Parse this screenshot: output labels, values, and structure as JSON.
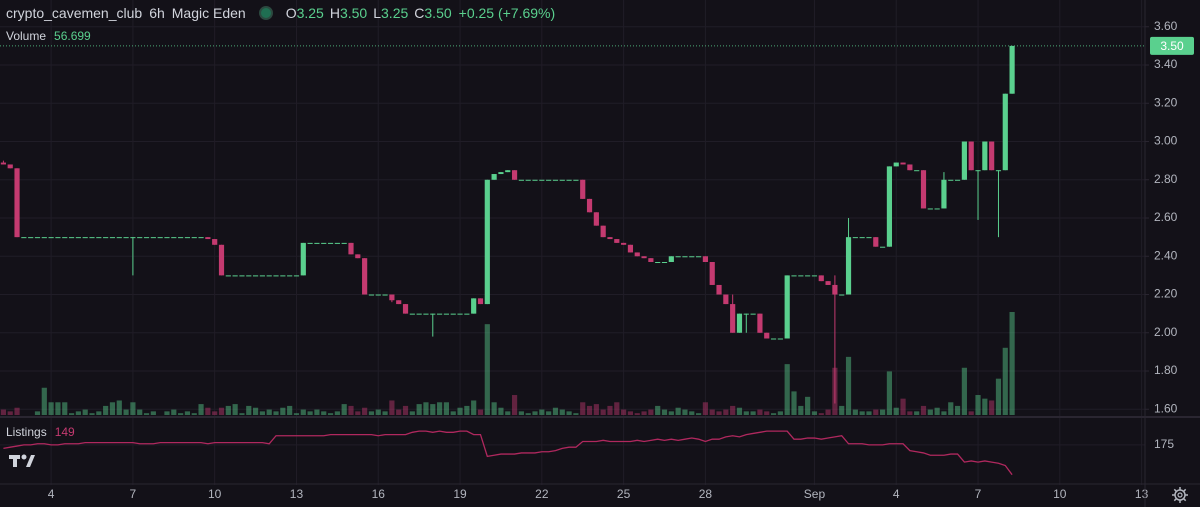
{
  "chart_data": {
    "type": "candlestick",
    "symbol": "crypto_cavemen_club",
    "interval": "6h",
    "exchange": "Magic Eden",
    "ohlc_legend": [
      {
        "letter": "O",
        "value": "3.25"
      },
      {
        "letter": "H",
        "value": "3.50"
      },
      {
        "letter": "L",
        "value": "3.25"
      },
      {
        "letter": "C",
        "value": "3.50"
      }
    ],
    "change_label": "+0.25 (+7.69%)",
    "up_color": "#5ad08e",
    "down_color": "#c43a70",
    "grid": true,
    "categories": [
      null,
      null,
      null,
      null,
      null,
      null,
      null,
      "4",
      null,
      null,
      null,
      null,
      null,
      null,
      null,
      null,
      null,
      null,
      null,
      "7",
      null,
      null,
      null,
      null,
      null,
      null,
      null,
      null,
      null,
      null,
      null,
      "10",
      null,
      null,
      null,
      null,
      null,
      null,
      null,
      null,
      null,
      null,
      null,
      "13",
      null,
      null,
      null,
      null,
      null,
      null,
      null,
      null,
      null,
      null,
      null,
      "16",
      null,
      null,
      null,
      null,
      null,
      null,
      null,
      null,
      null,
      null,
      null,
      "19",
      null,
      null,
      null,
      null,
      null,
      null,
      null,
      null,
      null,
      null,
      null,
      "22",
      null,
      null,
      null,
      null,
      null,
      null,
      null,
      null,
      null,
      null,
      null,
      "25",
      null,
      null,
      null,
      null,
      null,
      null,
      null,
      null,
      null,
      null,
      null,
      "28",
      null,
      null,
      null,
      null,
      null,
      null,
      null,
      null,
      null,
      null,
      null,
      null,
      null,
      null,
      null,
      "Sep",
      null,
      null,
      null,
      null,
      null,
      null,
      null,
      null,
      null,
      null,
      null,
      "4",
      null,
      null,
      null,
      null,
      null,
      null,
      null,
      null,
      null,
      null,
      null,
      "7",
      null,
      null,
      null,
      null,
      null,
      null,
      null,
      null,
      null,
      null,
      null,
      "10",
      null,
      null,
      null,
      null,
      null,
      null,
      null,
      null,
      null,
      null,
      null,
      "13"
    ],
    "open": [
      2.89,
      2.88,
      2.86,
      2.5,
      2.5,
      2.5,
      2.5,
      2.5,
      2.5,
      2.5,
      2.5,
      2.5,
      2.5,
      2.5,
      2.5,
      2.5,
      2.5,
      2.5,
      2.5,
      2.5,
      2.5,
      2.5,
      2.5,
      2.5,
      2.5,
      2.5,
      2.5,
      2.5,
      2.5,
      2.5,
      2.5,
      2.49,
      2.46,
      2.3,
      2.3,
      2.3,
      2.3,
      2.3,
      2.3,
      2.3,
      2.3,
      2.3,
      2.3,
      2.3,
      2.3,
      2.47,
      2.47,
      2.47,
      2.47,
      2.47,
      2.47,
      2.47,
      2.41,
      2.39,
      2.2,
      2.2,
      2.2,
      2.2,
      2.17,
      2.15,
      2.1,
      2.1,
      2.1,
      2.1,
      2.1,
      2.1,
      2.1,
      2.1,
      2.1,
      2.1,
      2.18,
      2.15,
      2.8,
      2.83,
      2.84,
      2.85,
      2.8,
      2.8,
      2.8,
      2.8,
      2.8,
      2.8,
      2.8,
      2.8,
      2.8,
      2.8,
      2.7,
      2.63,
      2.56,
      2.5,
      2.49,
      2.47,
      2.46,
      2.42,
      2.4,
      2.39,
      2.37,
      2.37,
      2.37,
      2.4,
      2.4,
      2.4,
      2.4,
      2.4,
      2.37,
      2.25,
      2.2,
      2.15,
      2.0,
      2.1,
      2.1,
      2.1,
      2.0,
      1.97,
      1.97,
      1.97,
      2.3,
      2.3,
      2.3,
      2.3,
      2.3,
      2.27,
      2.25,
      2.2,
      2.2,
      2.5,
      2.5,
      2.5,
      2.5,
      2.45,
      2.45,
      2.87,
      2.89,
      2.88,
      2.85,
      2.85,
      2.65,
      2.65,
      2.65,
      2.8,
      2.8,
      2.8,
      3.0,
      2.85,
      2.85,
      3.0,
      2.85,
      2.85,
      3.25,
      null,
      null,
      null,
      null,
      null,
      null,
      null,
      null,
      null,
      null,
      null,
      null,
      null,
      null,
      null,
      null,
      null,
      null,
      null
    ],
    "high": [
      2.9,
      2.88,
      2.86,
      2.5,
      2.5,
      2.5,
      2.5,
      2.5,
      2.5,
      2.5,
      2.5,
      2.5,
      2.5,
      2.5,
      2.5,
      2.5,
      2.5,
      2.5,
      2.5,
      2.5,
      2.5,
      2.5,
      2.5,
      2.5,
      2.5,
      2.5,
      2.5,
      2.5,
      2.5,
      2.5,
      2.5,
      2.49,
      2.46,
      2.3,
      2.3,
      2.3,
      2.3,
      2.3,
      2.3,
      2.3,
      2.3,
      2.3,
      2.3,
      2.3,
      2.47,
      2.47,
      2.47,
      2.47,
      2.47,
      2.47,
      2.47,
      2.47,
      2.41,
      2.39,
      2.2,
      2.2,
      2.2,
      2.2,
      2.17,
      2.15,
      2.1,
      2.1,
      2.1,
      2.1,
      2.1,
      2.1,
      2.1,
      2.1,
      2.1,
      2.18,
      2.18,
      2.8,
      2.83,
      2.84,
      2.85,
      2.85,
      2.8,
      2.8,
      2.8,
      2.8,
      2.8,
      2.8,
      2.8,
      2.8,
      2.8,
      2.8,
      2.7,
      2.63,
      2.56,
      2.5,
      2.49,
      2.47,
      2.46,
      2.42,
      2.4,
      2.39,
      2.37,
      2.37,
      2.4,
      2.4,
      2.4,
      2.4,
      2.4,
      2.4,
      2.37,
      2.25,
      2.2,
      2.2,
      2.1,
      2.1,
      2.1,
      2.1,
      2.0,
      1.97,
      1.97,
      2.3,
      2.3,
      2.3,
      2.3,
      2.3,
      2.3,
      2.27,
      2.3,
      2.2,
      2.6,
      2.5,
      2.5,
      2.5,
      2.5,
      2.45,
      2.87,
      2.89,
      2.89,
      2.88,
      2.85,
      2.85,
      2.65,
      2.65,
      2.84,
      2.8,
      2.8,
      3.0,
      3.0,
      2.85,
      3.0,
      3.0,
      2.85,
      3.25,
      3.5,
      null,
      null,
      null,
      null,
      null,
      null,
      null,
      null,
      null,
      null,
      null,
      null,
      null,
      null,
      null,
      null,
      null,
      null,
      null
    ],
    "low": [
      2.88,
      2.86,
      2.5,
      2.5,
      2.5,
      2.5,
      2.5,
      2.5,
      2.5,
      2.5,
      2.5,
      2.5,
      2.5,
      2.5,
      2.5,
      2.5,
      2.5,
      2.5,
      2.5,
      2.3,
      2.5,
      2.5,
      2.5,
      2.5,
      2.5,
      2.5,
      2.5,
      2.5,
      2.5,
      2.5,
      2.49,
      2.46,
      2.3,
      2.3,
      2.3,
      2.3,
      2.3,
      2.3,
      2.3,
      2.3,
      2.3,
      2.3,
      2.3,
      2.3,
      2.3,
      2.47,
      2.47,
      2.47,
      2.47,
      2.47,
      2.47,
      2.41,
      2.39,
      2.2,
      2.2,
      2.2,
      2.2,
      2.16,
      2.15,
      2.1,
      2.1,
      2.1,
      2.1,
      1.98,
      2.1,
      2.1,
      2.1,
      2.1,
      2.1,
      2.1,
      2.15,
      2.15,
      2.8,
      2.83,
      2.84,
      2.8,
      2.8,
      2.8,
      2.8,
      2.8,
      2.8,
      2.8,
      2.8,
      2.8,
      2.8,
      2.7,
      2.63,
      2.56,
      2.5,
      2.49,
      2.47,
      2.46,
      2.42,
      2.4,
      2.39,
      2.37,
      2.37,
      2.37,
      2.37,
      2.4,
      2.4,
      2.4,
      2.4,
      2.37,
      2.25,
      2.2,
      2.15,
      2.0,
      2.0,
      2.0,
      2.1,
      2.0,
      1.97,
      1.97,
      1.97,
      1.97,
      2.3,
      2.3,
      2.3,
      2.3,
      2.27,
      2.25,
      1.63,
      2.2,
      2.2,
      2.5,
      2.5,
      2.5,
      2.45,
      2.45,
      2.45,
      2.87,
      2.88,
      2.85,
      2.85,
      2.65,
      2.65,
      2.65,
      2.65,
      2.8,
      2.8,
      2.8,
      2.85,
      2.59,
      2.85,
      2.85,
      2.5,
      2.85,
      3.25,
      null,
      null,
      null,
      null,
      null,
      null,
      null,
      null,
      null,
      null,
      null,
      null,
      null,
      null,
      null,
      null,
      null,
      null,
      null
    ],
    "close": [
      2.88,
      2.86,
      2.5,
      2.5,
      2.5,
      2.5,
      2.5,
      2.5,
      2.5,
      2.5,
      2.5,
      2.5,
      2.5,
      2.5,
      2.5,
      2.5,
      2.5,
      2.5,
      2.5,
      2.5,
      2.5,
      2.5,
      2.5,
      2.5,
      2.5,
      2.5,
      2.5,
      2.5,
      2.5,
      2.5,
      2.49,
      2.46,
      2.3,
      2.3,
      2.3,
      2.3,
      2.3,
      2.3,
      2.3,
      2.3,
      2.3,
      2.3,
      2.3,
      2.3,
      2.47,
      2.47,
      2.47,
      2.47,
      2.47,
      2.47,
      2.47,
      2.41,
      2.39,
      2.2,
      2.2,
      2.2,
      2.2,
      2.17,
      2.15,
      2.1,
      2.1,
      2.1,
      2.1,
      2.1,
      2.1,
      2.1,
      2.1,
      2.1,
      2.1,
      2.18,
      2.15,
      2.8,
      2.83,
      2.84,
      2.85,
      2.8,
      2.8,
      2.8,
      2.8,
      2.8,
      2.8,
      2.8,
      2.8,
      2.8,
      2.8,
      2.7,
      2.63,
      2.56,
      2.5,
      2.49,
      2.47,
      2.46,
      2.42,
      2.4,
      2.39,
      2.37,
      2.37,
      2.37,
      2.4,
      2.4,
      2.4,
      2.4,
      2.4,
      2.37,
      2.25,
      2.2,
      2.15,
      2.0,
      2.1,
      2.1,
      2.1,
      2.0,
      1.97,
      1.97,
      1.97,
      2.3,
      2.3,
      2.3,
      2.3,
      2.3,
      2.27,
      2.25,
      2.2,
      2.2,
      2.5,
      2.5,
      2.5,
      2.5,
      2.45,
      2.45,
      2.87,
      2.89,
      2.88,
      2.85,
      2.85,
      2.65,
      2.65,
      2.65,
      2.8,
      2.8,
      2.8,
      3.0,
      2.85,
      2.85,
      3.0,
      2.85,
      2.85,
      3.25,
      3.5,
      null,
      null,
      null,
      null,
      null,
      null,
      null,
      null,
      null,
      null,
      null,
      null,
      null,
      null,
      null,
      null,
      null,
      null,
      null
    ],
    "ylim": [
      1.57,
      3.74
    ],
    "yticks": [
      {
        "value": 1.6,
        "label": "1.60"
      },
      {
        "value": 1.8,
        "label": "1.80"
      },
      {
        "value": 2.0,
        "label": "2.00"
      },
      {
        "value": 2.2,
        "label": "2.20"
      },
      {
        "value": 2.4,
        "label": "2.40"
      },
      {
        "value": 2.6,
        "label": "2.60"
      },
      {
        "value": 2.8,
        "label": "2.80"
      },
      {
        "value": 3.0,
        "label": "3.00"
      },
      {
        "value": 3.2,
        "label": "3.20"
      },
      {
        "value": 3.4,
        "label": "3.40"
      },
      {
        "value": 3.6,
        "label": "3.60"
      }
    ],
    "volume": {
      "name": "Volume",
      "values": [
        3,
        2,
        4,
        0,
        0,
        2,
        15,
        7,
        7,
        7,
        1,
        2,
        3,
        1,
        2,
        5,
        7,
        8,
        3,
        7,
        3,
        1,
        2,
        0,
        2,
        3,
        1,
        2,
        1,
        6,
        4,
        2,
        4,
        5,
        6,
        1,
        5,
        4,
        2,
        3,
        2,
        4,
        5,
        1,
        3,
        2,
        3,
        2,
        1,
        2,
        6,
        5,
        2,
        4,
        2,
        3,
        2,
        8,
        3,
        5,
        2,
        6,
        7,
        6,
        7,
        7,
        2,
        4,
        5,
        8,
        3,
        50,
        7,
        4,
        2,
        11,
        2,
        1,
        2,
        3,
        2,
        4,
        3,
        2,
        1,
        7,
        5,
        6,
        3,
        5,
        7,
        3,
        2,
        1,
        2,
        3,
        5,
        3,
        2,
        4,
        3,
        2,
        1,
        7,
        3,
        2,
        3,
        5,
        4,
        2,
        2,
        3,
        2,
        1,
        2,
        28,
        13,
        5,
        10,
        2,
        1,
        3,
        26,
        5,
        32,
        3,
        2,
        2,
        3,
        3,
        24,
        4,
        9,
        2,
        2,
        5,
        3,
        4,
        2,
        7,
        5,
        26,
        2,
        11,
        9,
        8,
        20,
        37,
        56.699,
        null,
        null,
        null,
        null,
        null,
        null,
        null,
        null,
        null,
        null,
        null,
        null,
        null,
        null,
        null,
        null,
        null,
        null,
        null
      ]
    },
    "listings": {
      "name": "Listings",
      "color": "#b0285e",
      "values": [
        172,
        173,
        174,
        175,
        175,
        176,
        176,
        175,
        175,
        176,
        176,
        176,
        177,
        177,
        177,
        177,
        177,
        177,
        177,
        177,
        176,
        176,
        176,
        177,
        177,
        177,
        177,
        177,
        177,
        177,
        176,
        177,
        177,
        177,
        177,
        177,
        177,
        177,
        177,
        176,
        183,
        183,
        183,
        183,
        183,
        183,
        183,
        183,
        184,
        184,
        184,
        184,
        184,
        184,
        184,
        183,
        184,
        184,
        184,
        184,
        186,
        187,
        187,
        186,
        187,
        186,
        186,
        187,
        187,
        184,
        184,
        165,
        166,
        167,
        167,
        167,
        168,
        168,
        168,
        169,
        169,
        170,
        172,
        173,
        173,
        178,
        178,
        178,
        179,
        178,
        178,
        178,
        178,
        179,
        178,
        179,
        180,
        179,
        180,
        179,
        180,
        181,
        180,
        178,
        180,
        180,
        182,
        183,
        182,
        184,
        185,
        186,
        187,
        187,
        187,
        187,
        180,
        180,
        181,
        181,
        180,
        181,
        182,
        183,
        176,
        176,
        176,
        175,
        175,
        175,
        176,
        176,
        176,
        170,
        169,
        168,
        166,
        166,
        166,
        167,
        167,
        160,
        161,
        160,
        161,
        160,
        159,
        157,
        149,
        null,
        null,
        null,
        null,
        null,
        null,
        null,
        null,
        null,
        null,
        null,
        null,
        null,
        null,
        null,
        null,
        null,
        null,
        null
      ],
      "ylim": [
        140,
        195
      ],
      "yticks": [
        175
      ]
    }
  }
}
